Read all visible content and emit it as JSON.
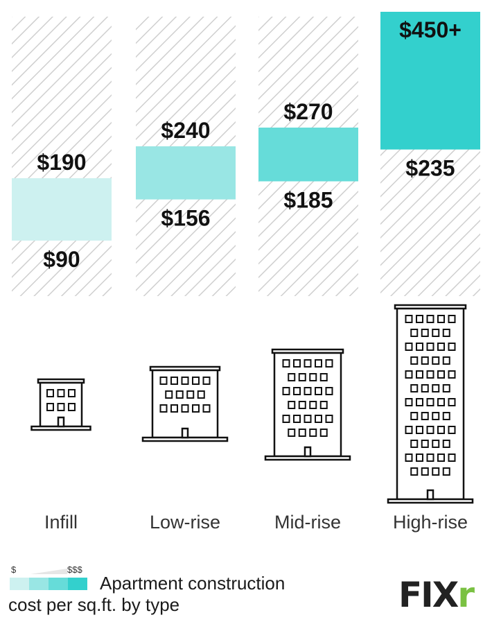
{
  "chart_data": {
    "type": "range-bar",
    "title": "",
    "ylabel": "",
    "categories": [
      "Infill",
      "Low-rise",
      "Mid-rise",
      "High-rise"
    ],
    "ranges": [
      {
        "category": "Infill",
        "low": 90,
        "high": 190,
        "low_label": "$90",
        "high_label": "$190",
        "color": "#cdf1f0"
      },
      {
        "category": "Low-rise",
        "low": 156,
        "high": 240,
        "low_label": "$156",
        "high_label": "$240",
        "color": "#99e6e4"
      },
      {
        "category": "Mid-rise",
        "low": 185,
        "high": 270,
        "low_label": "$185",
        "high_label": "$270",
        "color": "#66dcd9"
      },
      {
        "category": "High-rise",
        "low": 235,
        "high": 450,
        "low_label": "$235",
        "high_label": "$450+",
        "color": "#33d0cd"
      }
    ],
    "ylim": [
      90,
      450
    ]
  },
  "legend": {
    "low_symbol": "$",
    "high_symbol": "$$$",
    "line1": "Apartment construction",
    "line2": "cost per sq.ft. by type",
    "swatches": [
      "#cdf1f0",
      "#99e6e4",
      "#66dcd9",
      "#33d0cd"
    ]
  },
  "logo": {
    "main": "FIX",
    "accent": "r"
  },
  "icons": [
    "infill-building-icon",
    "low-rise-building-icon",
    "mid-rise-building-icon",
    "high-rise-building-icon"
  ]
}
